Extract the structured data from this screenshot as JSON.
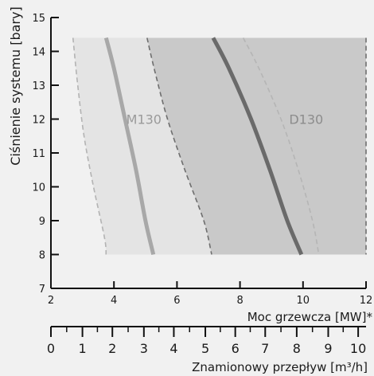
{
  "chart_data": {
    "type": "area",
    "ylabel": "Ciśnienie systemu [bary]",
    "xlabel": "Moc grzewcza [MW]*",
    "x2label": "Znamionowy przepływ [m³/h]",
    "xlim": [
      2,
      12
    ],
    "ylim": [
      7,
      15
    ],
    "x_ticks": [
      2,
      4,
      6,
      8,
      10,
      12
    ],
    "y_ticks": [
      7,
      8,
      9,
      10,
      11,
      12,
      13,
      14,
      15
    ],
    "x2_ticks": [
      0,
      1,
      2,
      3,
      4,
      5,
      6,
      7,
      8,
      9,
      10
    ],
    "x2_at_x": {
      "0": 2.0,
      "1": 3.0,
      "2": 3.95,
      "3": 4.95,
      "4": 5.9,
      "5": 6.9,
      "6": 7.85,
      "7": 8.8,
      "8": 9.8,
      "9": 10.8,
      "10": 11.75
    },
    "regions": [
      {
        "name": "M130",
        "color": "#e4e4e4",
        "left_boundary": [
          [
            2.7,
            14.4
          ],
          [
            2.85,
            13.0
          ],
          [
            3.05,
            11.5
          ],
          [
            3.35,
            10.0
          ],
          [
            3.7,
            8.5
          ],
          [
            3.75,
            8.0
          ]
        ],
        "right_boundary": [
          [
            5.05,
            14.4
          ],
          [
            5.3,
            13.4
          ],
          [
            5.7,
            12.0
          ],
          [
            6.25,
            10.5
          ],
          [
            6.85,
            9.0
          ],
          [
            7.1,
            8.0
          ]
        ]
      },
      {
        "name": "D130",
        "color": "#c9c9c9",
        "left_boundary": [
          [
            5.05,
            14.4
          ],
          [
            5.3,
            13.4
          ],
          [
            5.7,
            12.0
          ],
          [
            6.25,
            10.5
          ],
          [
            6.85,
            9.0
          ],
          [
            7.1,
            8.0
          ]
        ],
        "right_boundary": [
          [
            12.0,
            14.4
          ],
          [
            12.0,
            8.0
          ]
        ]
      }
    ],
    "series": [
      {
        "name": "M130",
        "color": "#a8a8a8",
        "style": "solid",
        "points": [
          [
            3.75,
            14.4
          ],
          [
            4.0,
            13.5
          ],
          [
            4.35,
            12.0
          ],
          [
            4.7,
            10.5
          ],
          [
            5.0,
            9.0
          ],
          [
            5.25,
            8.0
          ]
        ]
      },
      {
        "name": "D130",
        "color": "#6a6a6a",
        "style": "solid",
        "points": [
          [
            7.15,
            14.4
          ],
          [
            7.65,
            13.5
          ],
          [
            8.35,
            12.0
          ],
          [
            8.95,
            10.5
          ],
          [
            9.5,
            9.0
          ],
          [
            9.95,
            8.0
          ]
        ]
      },
      {
        "color": "#b5b5b5",
        "style": "dashed",
        "points": [
          [
            8.1,
            14.4
          ],
          [
            8.6,
            13.5
          ],
          [
            9.3,
            12.0
          ],
          [
            9.85,
            10.5
          ],
          [
            10.3,
            9.0
          ],
          [
            10.5,
            8.0
          ]
        ]
      }
    ],
    "labels": [
      {
        "text": "M130",
        "x": 4.95,
        "y": 12.0,
        "color": "#9a9a9a"
      },
      {
        "text": "D130",
        "x": 10.1,
        "y": 12.0,
        "color": "#8c8c8c"
      }
    ]
  }
}
